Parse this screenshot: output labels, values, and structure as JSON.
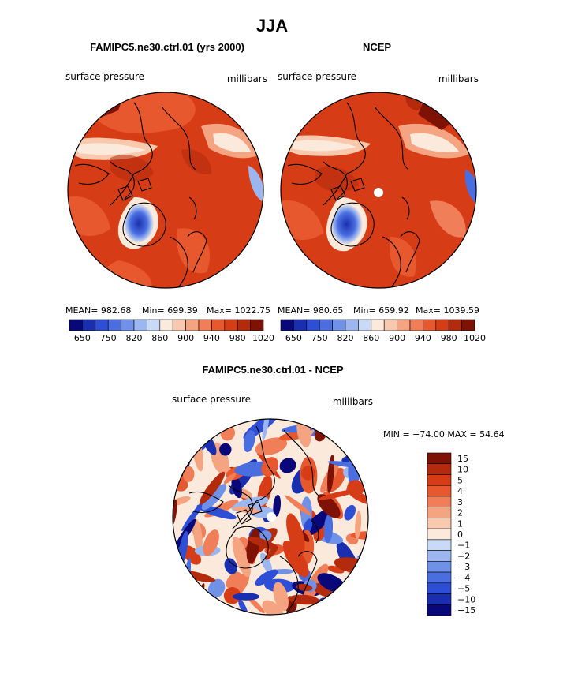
{
  "chart_data": {
    "type": "heatmap",
    "title": "JJA",
    "panels": [
      {
        "id": "model",
        "subtitle": "FAMIPC5.ne30.ctrl.01 (yrs 2000)",
        "left_label": "surface pressure",
        "right_label": "millibars",
        "mean": "MEAN= 982.68",
        "min": "Min= 699.39",
        "max": "Max= 1022.75",
        "stats_values": {
          "mean": 982.68,
          "min": 699.39,
          "max": 1022.75
        }
      },
      {
        "id": "ncep",
        "subtitle": "NCEP",
        "left_label": "surface pressure",
        "right_label": "millibars",
        "mean": "MEAN= 980.65",
        "min": "Min= 659.92",
        "max": "Max= 1039.59",
        "stats_values": {
          "mean": 980.65,
          "min": 659.92,
          "max": 1039.59
        }
      },
      {
        "id": "diff",
        "subtitle": "FAMIPC5.ne30.ctrl.01 - NCEP",
        "left_label": "surface pressure",
        "right_label": "millibars",
        "minmax": "MIN = −74.00 MAX =  54.64",
        "stats_values": {
          "min": -74.0,
          "max": 54.64
        }
      }
    ],
    "abs_colorbar": {
      "colors": [
        "#08087a",
        "#1a2fb0",
        "#2f4ed6",
        "#4a6ee0",
        "#6f92e8",
        "#9cb7f0",
        "#c9daf7",
        "#fbe9dc",
        "#f9c9ad",
        "#f5a482",
        "#f07e58",
        "#e8582f",
        "#d63d17",
        "#b32a0d",
        "#7e1205"
      ],
      "ticks": [
        "650",
        "750",
        "820",
        "860",
        "900",
        "940",
        "980",
        "1020"
      ]
    },
    "diff_colorbar": {
      "colors": [
        "#7e1205",
        "#b32a0d",
        "#d63d17",
        "#e8582f",
        "#f07e58",
        "#f5a482",
        "#f9c9ad",
        "#fbe9dc",
        "#c9daf7",
        "#9cb7f0",
        "#6f92e8",
        "#4a6ee0",
        "#2f4ed6",
        "#1a2fb0",
        "#08087a"
      ],
      "ticks": [
        "15",
        "10",
        "5",
        "4",
        "3",
        "2",
        "1",
        "0",
        "−1",
        "−2",
        "−3",
        "−4",
        "−5",
        "−10",
        "−15"
      ]
    }
  }
}
